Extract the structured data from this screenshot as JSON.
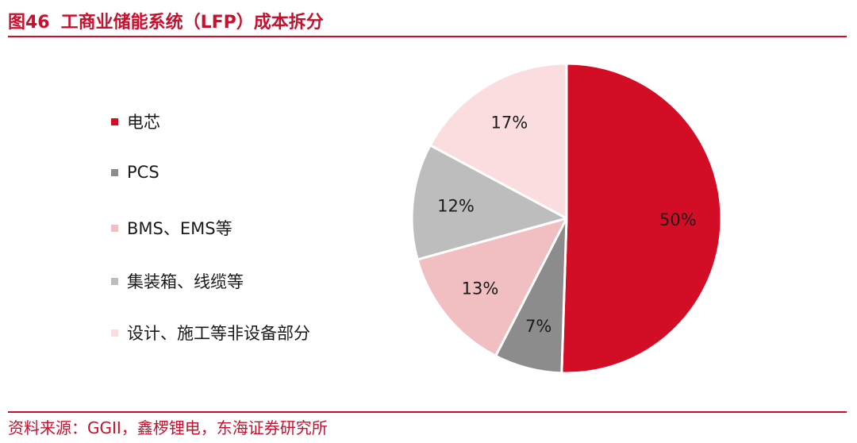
{
  "figure": {
    "number": "图46",
    "title": "工商业储能系统（LFP）成本拆分"
  },
  "source": "资料来源：GGII，鑫椤锂电，东海证券研究所",
  "chart_data": {
    "type": "pie",
    "title": "工商业储能系统（LFP）成本拆分",
    "legend_position": "left",
    "categories": [
      "电芯",
      "PCS",
      "BMS、EMS等",
      "集装箱、线缆等",
      "设计、施工等非设备部分"
    ],
    "values": [
      50,
      7,
      13,
      12,
      17
    ],
    "labels": [
      "50%",
      "7%",
      "13%",
      "12%",
      "17%"
    ],
    "colors": [
      "#d40d26",
      "#8c8c8c",
      "#f1bfc2",
      "#bdbdbd",
      "#fbdde0"
    ]
  }
}
